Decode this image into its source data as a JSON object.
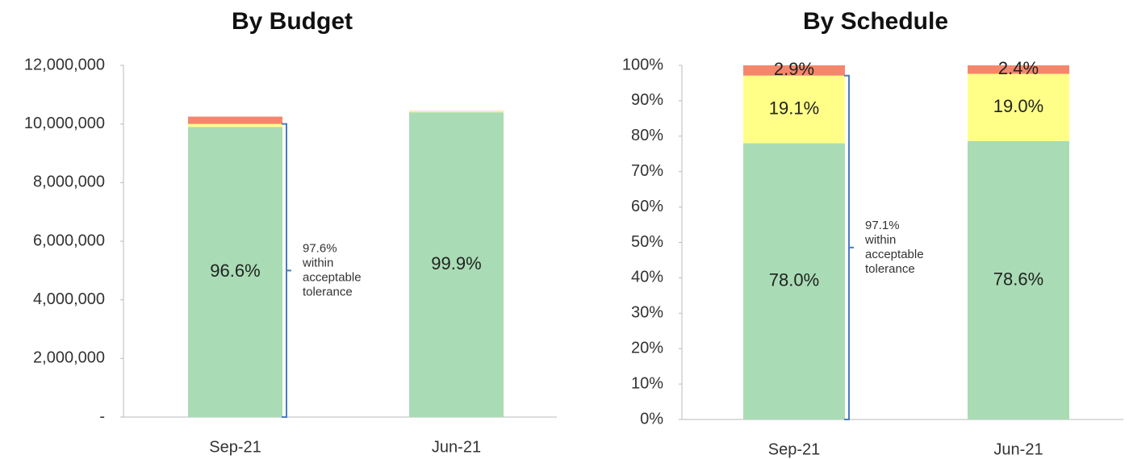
{
  "chart_data": [
    {
      "type": "stacked_bar",
      "title": "By Budget",
      "categories": [
        "Sep-21",
        "Jun-21"
      ],
      "series": [
        {
          "color": "#a9dcb5",
          "values": [
            9900000,
            10400000
          ]
        },
        {
          "color": "#ffff88",
          "values": [
            100000,
            30000
          ]
        },
        {
          "color": "#f4876b",
          "values": [
            250000,
            10000
          ]
        }
      ],
      "bar_labels": [
        "96.6%",
        "99.9%"
      ],
      "ylim": [
        0,
        12000000
      ],
      "yticks": [
        {
          "value": 0,
          "label": "-"
        },
        {
          "value": 2000000,
          "label": "2,000,000"
        },
        {
          "value": 4000000,
          "label": "4,000,000"
        },
        {
          "value": 6000000,
          "label": "6,000,000"
        },
        {
          "value": 8000000,
          "label": "8,000,000"
        },
        {
          "value": 10000000,
          "label": "10,000,000"
        },
        {
          "value": 12000000,
          "label": "12,000,000"
        }
      ],
      "annotation": [
        "97.6%",
        "within",
        "acceptable",
        "tolerance"
      ]
    },
    {
      "type": "stacked_bar",
      "title": "By Schedule",
      "categories": [
        "Sep-21",
        "Jun-21"
      ],
      "series": [
        {
          "color": "#a9dcb5",
          "values": [
            78.0,
            78.6
          ],
          "value_labels": [
            "78.0%",
            "78.6%"
          ]
        },
        {
          "color": "#ffff88",
          "values": [
            19.1,
            19.0
          ],
          "value_labels": [
            "19.1%",
            "19.0%"
          ]
        },
        {
          "color": "#f4876b",
          "values": [
            2.9,
            2.4
          ],
          "value_labels": [
            "2.9%",
            "2.4%"
          ]
        }
      ],
      "ylim": [
        0,
        100
      ],
      "yticks": [
        {
          "value": 0,
          "label": "0%"
        },
        {
          "value": 10,
          "label": "10%"
        },
        {
          "value": 20,
          "label": "20%"
        },
        {
          "value": 30,
          "label": "30%"
        },
        {
          "value": 40,
          "label": "40%"
        },
        {
          "value": 50,
          "label": "50%"
        },
        {
          "value": 60,
          "label": "60%"
        },
        {
          "value": 70,
          "label": "70%"
        },
        {
          "value": 80,
          "label": "80%"
        },
        {
          "value": 90,
          "label": "90%"
        },
        {
          "value": 100,
          "label": "100%"
        }
      ],
      "annotation": [
        "97.1%",
        "within",
        "acceptable",
        "tolerance"
      ]
    }
  ]
}
